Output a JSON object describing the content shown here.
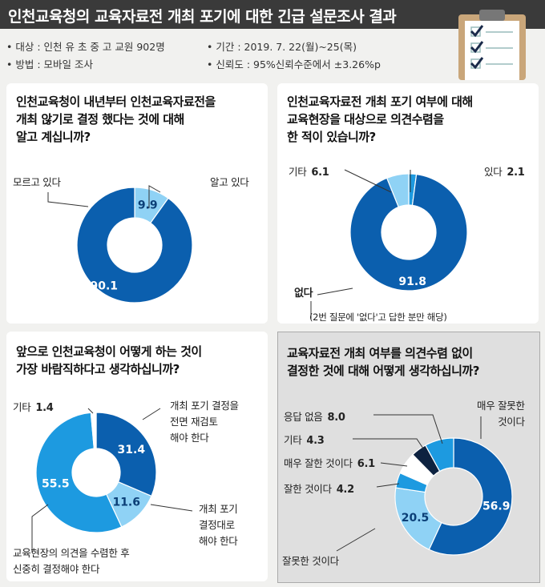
{
  "header": {
    "title": "인천교육청의 교육자료전 개최 포기에 대한 긴급 설문조사 결과"
  },
  "info": {
    "target": "• 대상 : 인천 유 초 중 고 교원 902명",
    "method": "• 방법 : 모바일 조사",
    "period": "• 기간 : 2019. 7. 22(월)~25(목)",
    "reliability": "• 신뢰도 : 95%신뢰수준에서 ±3.26%p"
  },
  "colors": {
    "dark_blue": "#0b5fae",
    "light_blue": "#8fd2f5",
    "mid_blue": "#1d9ae0",
    "navy": "#0d2240",
    "white": "#ffffff"
  },
  "note": "(2번 질문에 '없다'고 답한 분만 해당)",
  "chart_data": [
    {
      "type": "pie",
      "question": [
        "인천교육청이 내년부터 인천교육자료전을",
        "개최 않기로 결정 했다는 것에 대해",
        "알고 계십니까?"
      ],
      "categories": [
        "알고 있다",
        "모르고 있다"
      ],
      "values": [
        9.9,
        90.1
      ],
      "value_labels": [
        "9.9",
        "90.1"
      ]
    },
    {
      "type": "pie",
      "question": [
        "인천교육자료전 개최 포기 여부에 대해",
        "교육현장을 대상으로 의견수렴을",
        "한 적이 있습니까?"
      ],
      "categories": [
        "있다",
        "없다",
        "기타"
      ],
      "values": [
        2.1,
        91.8,
        6.1
      ],
      "value_labels": [
        "2.1",
        "91.8",
        "6.1"
      ]
    },
    {
      "type": "pie",
      "question": [
        "앞으로 인천교육청이 어떻게 하는 것이",
        "가장 바람직하다고 생각하십니까?"
      ],
      "categories": [
        "개최 포기 결정을 전면 재검토 해야 한다",
        "개최 포기 결정대로 해야 한다",
        "교육현장의 의견을 수렴한 후 신중히 결정해야 한다",
        "기타"
      ],
      "values": [
        31.4,
        11.6,
        55.5,
        1.4
      ],
      "value_labels": [
        "31.4",
        "11.6",
        "55.5",
        "1.4"
      ]
    },
    {
      "type": "pie",
      "question": [
        "교육자료전 개최 여부를 의견수렴 없이",
        "결정한 것에 대해 어떻게 생각하십니까?"
      ],
      "categories": [
        "매우 잘못한 것이다",
        "잘못한 것이다",
        "잘한 것이다",
        "매우 잘한 것이다",
        "기타",
        "응답 없음"
      ],
      "values": [
        56.9,
        20.5,
        4.2,
        6.1,
        4.3,
        8.0
      ],
      "value_labels": [
        "56.9",
        "20.5",
        "4.2",
        "6.1",
        "4.3",
        "8.0"
      ]
    }
  ],
  "labels": {
    "c1": {
      "know": "알고 있다",
      "dont": "모르고 있다"
    },
    "c2": {
      "yes": "있다",
      "yes_v": "2.1",
      "etc": "기타",
      "etc_v": "6.1",
      "no": "없다"
    },
    "c3": {
      "etc": "기타",
      "etc_v": "1.4",
      "re1": "개최 포기 결정을",
      "re2": "전면 재검토",
      "re3": "해야 한다",
      "fo1": "개최 포기",
      "fo2": "결정대로",
      "fo3": "해야 한다",
      "co1": "교육현장의 의견을 수렴한 후",
      "co2": "신중히 결정해야 한다"
    },
    "c4": {
      "vb1": "매우 잘못한",
      "vb2": "것이다",
      "bad": "잘못한 것이다",
      "good": "잘한 것이다",
      "good_v": "4.2",
      "vgood": "매우 잘한 것이다",
      "vgood_v": "6.1",
      "etc": "기타",
      "etc_v": "4.3",
      "nr": "응답 없음",
      "nr_v": "8.0"
    }
  }
}
